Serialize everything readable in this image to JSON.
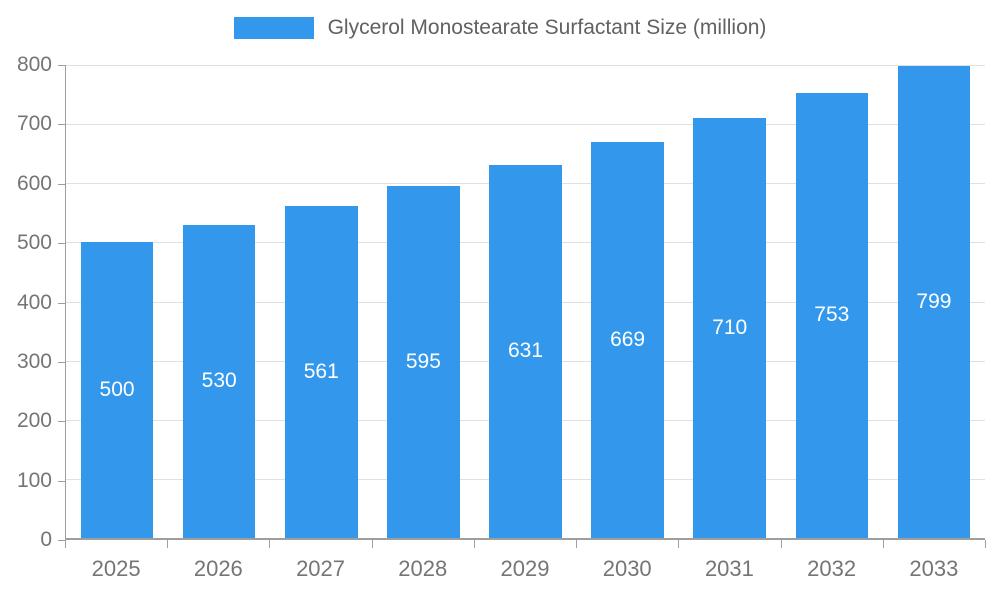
{
  "chart_data": {
    "type": "bar",
    "title": "Glycerol Monostearate Surfactant Size (million)",
    "categories": [
      "2025",
      "2026",
      "2027",
      "2028",
      "2029",
      "2030",
      "2031",
      "2032",
      "2033"
    ],
    "values": [
      500,
      530,
      561,
      595,
      631,
      669,
      710,
      753,
      799
    ],
    "xlabel": "",
    "ylabel": "",
    "ylim": [
      0,
      800
    ],
    "y_ticks": [
      0,
      100,
      200,
      300,
      400,
      500,
      600,
      700,
      800
    ],
    "grid": true,
    "legend_position": "top",
    "bar_color": "#3398EC",
    "value_label_color": "#FFFFFF",
    "gridline_color": "#E0E0E0",
    "axis_color": "#9E9E9E",
    "tick_label_color": "#757575",
    "title_color": "#616161"
  }
}
